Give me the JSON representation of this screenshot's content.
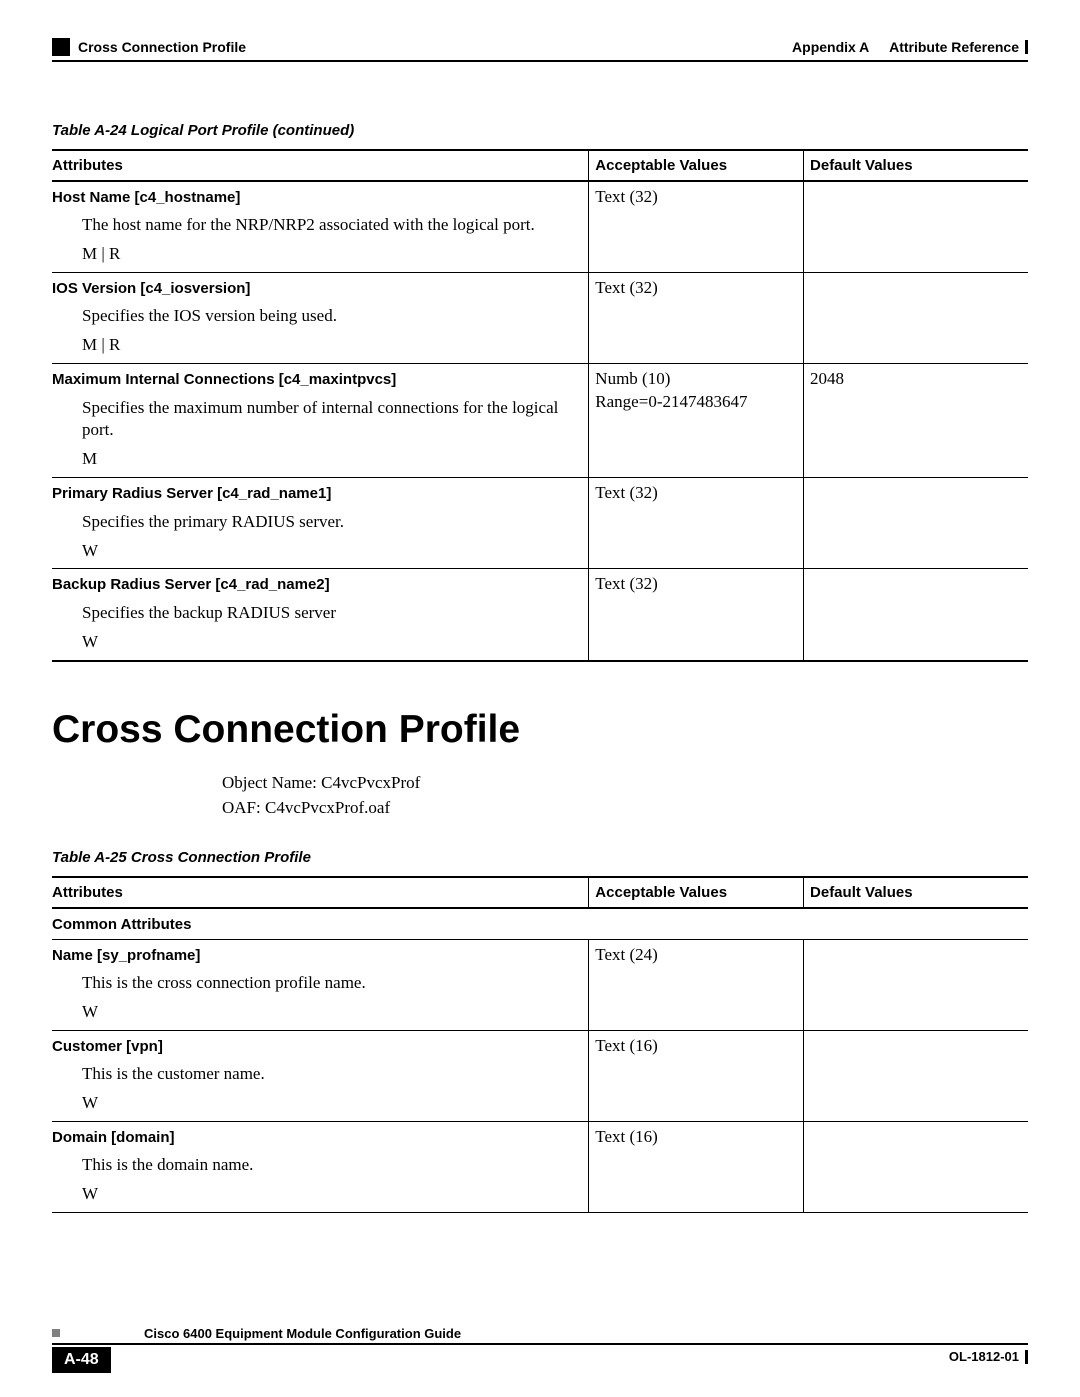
{
  "colors": {
    "text": "#000000",
    "background": "#ffffff",
    "rule": "#000000",
    "gray_square": "#808080"
  },
  "header": {
    "section_marker": "Cross Connection Profile",
    "appendix_label": "Appendix A",
    "appendix_title": "Attribute Reference"
  },
  "table1": {
    "caption": "Table A-24   Logical Port Profile (continued)",
    "columns": {
      "attributes": "Attributes",
      "acceptable": "Acceptable Values",
      "default": "Default Values"
    },
    "rows": [
      {
        "name": "Host Name [c4_hostname]",
        "desc": "The host name for the NRP/NRP2 associated with the logical port.",
        "flag": "M | R",
        "acceptable": "Text (32)",
        "default": ""
      },
      {
        "name": "IOS Version [c4_iosversion]",
        "desc": "Specifies the IOS version being used.",
        "flag": "M | R",
        "acceptable": "Text (32)",
        "default": ""
      },
      {
        "name": "Maximum Internal Connections [c4_maxintpvcs]",
        "desc": "Specifies the maximum number of internal connections for the logical port.",
        "flag": "M",
        "acceptable": "Numb (10)\nRange=0-2147483647",
        "default": "2048"
      },
      {
        "name": "Primary Radius Server [c4_rad_name1]",
        "desc": "Specifies the primary RADIUS server.",
        "flag": "W",
        "acceptable": "Text (32)",
        "default": ""
      },
      {
        "name": "Backup Radius Server [c4_rad_name2]",
        "desc": "Specifies the backup RADIUS server",
        "flag": "W",
        "acceptable": "Text (32)",
        "default": ""
      }
    ]
  },
  "section": {
    "heading": "Cross Connection Profile",
    "object_name": "Object Name: C4vcPvcxProf",
    "oaf": "OAF: C4vcPvcxProf.oaf"
  },
  "table2": {
    "caption": "Table A-25   Cross Connection Profile",
    "columns": {
      "attributes": "Attributes",
      "acceptable": "Acceptable Values",
      "default": "Default Values"
    },
    "common_label": "Common Attributes",
    "rows": [
      {
        "name": "Name [sy_profname]",
        "desc": "This is the cross connection profile name.",
        "flag": "W",
        "acceptable": "Text (24)",
        "default": ""
      },
      {
        "name": "Customer [vpn]",
        "desc": "This is the customer name.",
        "flag": "W",
        "acceptable": "Text (16)",
        "default": ""
      },
      {
        "name": "Domain [domain]",
        "desc": "This is the domain name.",
        "flag": "W",
        "acceptable": "Text (16)",
        "default": ""
      }
    ]
  },
  "footer": {
    "guide_title": "Cisco 6400 Equipment Module Configuration Guide",
    "page_number": "A-48",
    "doc_id": "OL-1812-01"
  }
}
